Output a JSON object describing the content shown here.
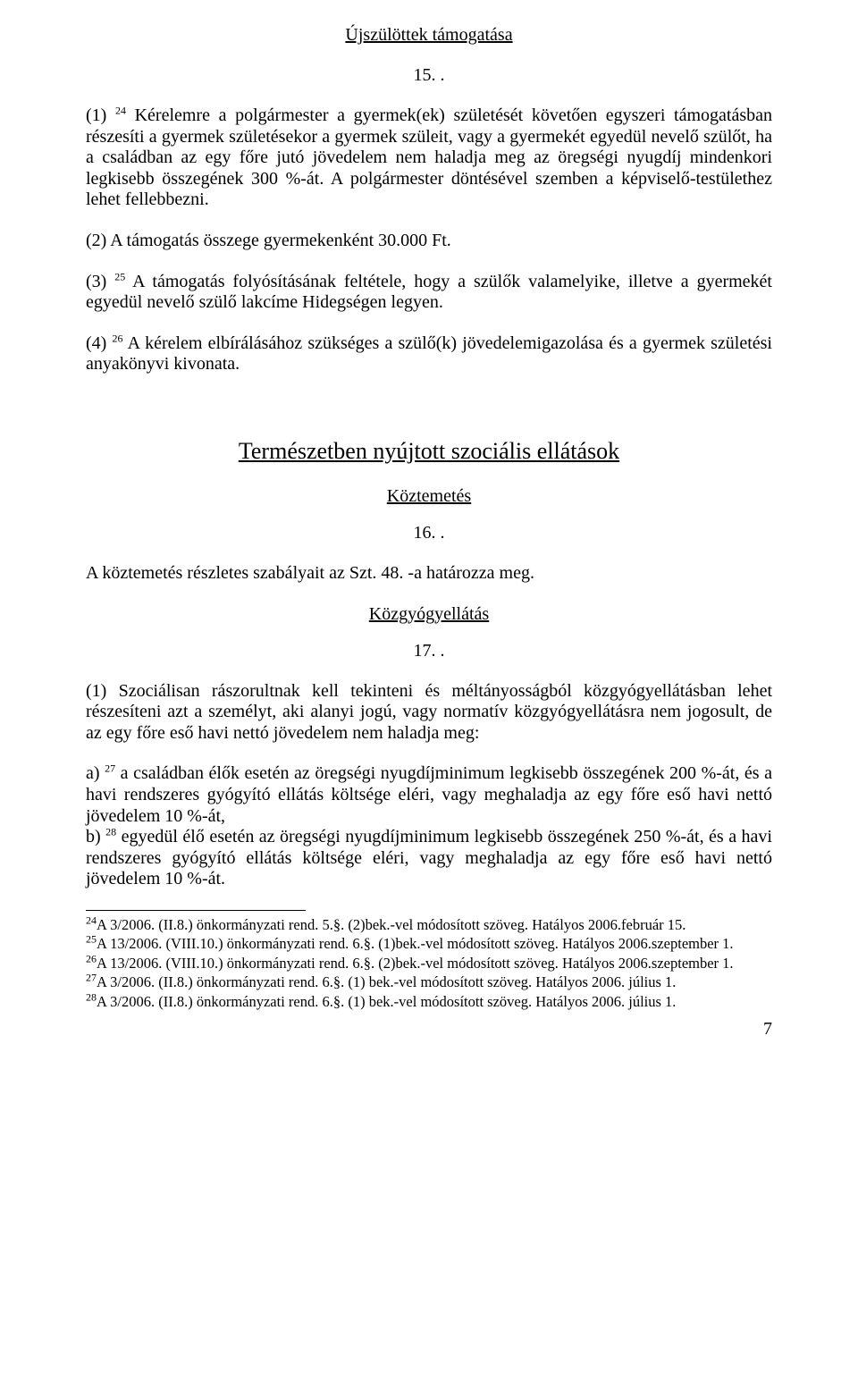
{
  "title_newborn": "Újszülöttek támogatása",
  "num_15": "15. .",
  "p1_prefix": "(1) ",
  "p1_fn": "24",
  "p1_text": " Kérelemre a polgármester a gyermek(ek) születését követően egyszeri támogatásban részesíti a gyermek születésekor a gyermek szüleit, vagy a gyermekét egyedül nevelő szülőt, ha a családban az egy főre jutó jövedelem nem haladja meg az öregségi nyugdíj mindenkori legkisebb összegének 300 %-át. A polgármester döntésével szemben a képviselő-testülethez lehet fellebbezni.",
  "p2": "(2) A támogatás összege gyermekenként 30.000 Ft.",
  "p3_prefix": "(3) ",
  "p3_fn": "25",
  "p3_text": " A támogatás folyósításának feltétele, hogy a szülők valamelyike, illetve a gyermekét egyedül nevelő szülő lakcíme Hidegségen legyen.",
  "p4_prefix": "(4) ",
  "p4_fn": "26",
  "p4_text": " A kérelem elbírálásához szükséges a szülő(k) jövedelemigazolása és a gyermek születési anyakönyvi kivonata.",
  "big_title": "Természetben nyújtott szociális ellátások",
  "sub_koztemetes": "Köztemetés",
  "num_16": "16. .",
  "p_koz": "A köztemetés részletes szabályait az Szt. 48. -a határozza meg.",
  "sub_kozgyogy": "Közgyógyellátás",
  "num_17": "17. .",
  "p17_1": "(1) Szociálisan rászorultnak kell tekinteni és méltányosságból közgyógyellátásban lehet részesíteni azt a személyt, aki alanyi jogú, vagy normatív közgyógyellátásra nem jogosult, de az egy főre eső havi nettó jövedelem nem haladja meg:",
  "pa_prefix": "a) ",
  "pa_fn": "27",
  "pa_text": " a családban élők esetén az öregségi nyugdíjminimum legkisebb összegének 200 %-át, és a havi rendszeres gyógyító ellátás költsége eléri, vagy meghaladja az egy főre eső havi nettó jövedelem 10 %-át,",
  "pb_prefix": "b) ",
  "pb_fn": "28",
  "pb_text": " egyedül élő esetén az öregségi nyugdíjminimum legkisebb összegének 250 %-át, és a havi rendszeres gyógyító ellátás költsége eléri, vagy meghaladja az egy főre eső havi nettó jövedelem 10 %-át.",
  "fn24_sup": "24",
  "fn24": "A 3/2006. (II.8.) önkormányzati rend. 5.§. (2)bek.-vel módosított szöveg. Hatályos 2006.február 15.",
  "fn25_sup": "25",
  "fn25": "A 13/2006. (VIII.10.) önkormányzati rend. 6.§. (1)bek.-vel módosított szöveg. Hatályos 2006.szeptember 1.",
  "fn26_sup": "26",
  "fn26": "A 13/2006. (VIII.10.) önkormányzati rend. 6.§. (2)bek.-vel módosított szöveg. Hatályos 2006.szeptember 1.",
  "fn27_sup": "27",
  "fn27": "A 3/2006. (II.8.) önkormányzati rend. 6.§. (1) bek.-vel módosított szöveg. Hatályos 2006. július 1.",
  "fn28_sup": "28",
  "fn28": "A 3/2006. (II.8.) önkormányzati rend. 6.§. (1) bek.-vel módosított szöveg. Hatályos 2006. július 1.",
  "page_number": "7"
}
